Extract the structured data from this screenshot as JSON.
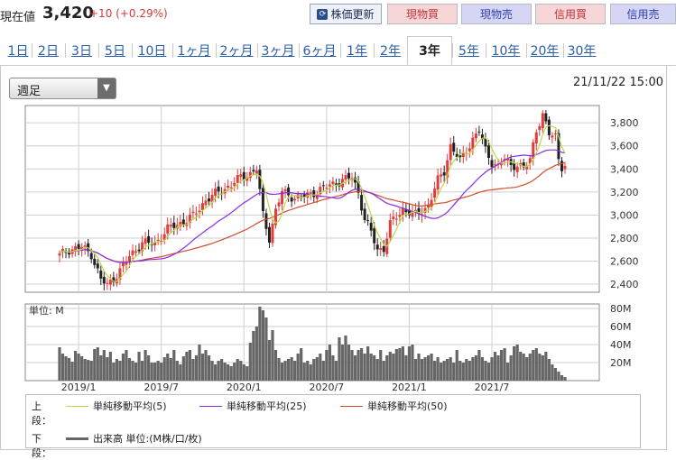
{
  "header": {
    "price_label": "現在値",
    "price_value": "3,420",
    "price_change": "+10 (+0.29%)",
    "update_button": "株価更新",
    "buy_button": "現物買",
    "sell_button": "現物売",
    "margin_buy_button": "信用買",
    "margin_sell_button": "信用売"
  },
  "tabs": [
    "1日",
    "2日",
    "3日",
    "5日",
    "10日",
    "1ヶ月",
    "2ヶ月",
    "3ヶ月",
    "6ヶ月",
    "1年",
    "2年",
    "3年",
    "5年",
    "10年",
    "20年",
    "30年"
  ],
  "active_tab": "3年",
  "period_select": "週足",
  "timestamp": "21/11/22 15:00",
  "colors": {
    "up": "#e23c3c",
    "down": "#222222",
    "ma5": "#b8d84c",
    "ma25": "#8a2be2",
    "ma50": "#d0502a",
    "volume": "#666666"
  },
  "legend": {
    "upper_label": "上段：",
    "lower_label": "下段：",
    "ma5": "単純移動平均(5)",
    "ma25": "単純移動平均(25)",
    "ma50": "単純移動平均(50)",
    "volume": "出来高 単位:(M株/口/枚)"
  },
  "chart_data": {
    "type": "candlestick",
    "price_axis": {
      "ticks": [
        "3,800",
        "3,600",
        "3,400",
        "3,200",
        "3,000",
        "2,800",
        "2,600",
        "2,400"
      ],
      "ylim": [
        2330,
        3950
      ]
    },
    "volume_axis": {
      "unit_label": "単位: M",
      "ticks": [
        "80M",
        "60M",
        "40M",
        "20M"
      ],
      "ylim": [
        0,
        85
      ]
    },
    "x_axis": {
      "ticks": [
        "2019/1",
        "2019/7",
        "2020/1",
        "2020/7",
        "2021/1",
        "2021/7"
      ]
    },
    "price_path": [
      [
        0,
        2650
      ],
      [
        3,
        2700
      ],
      [
        7,
        2720
      ],
      [
        10,
        2660
      ],
      [
        13,
        2440
      ],
      [
        15,
        2390
      ],
      [
        18,
        2480
      ],
      [
        22,
        2640
      ],
      [
        26,
        2760
      ],
      [
        30,
        2750
      ],
      [
        34,
        2880
      ],
      [
        38,
        2930
      ],
      [
        42,
        2990
      ],
      [
        46,
        3130
      ],
      [
        50,
        3200
      ],
      [
        54,
        3260
      ],
      [
        57,
        3330
      ],
      [
        60,
        3360
      ],
      [
        62,
        3400
      ],
      [
        64,
        3000
      ],
      [
        66,
        2800
      ],
      [
        68,
        3040
      ],
      [
        70,
        3200
      ],
      [
        74,
        3150
      ],
      [
        78,
        3170
      ],
      [
        82,
        3220
      ],
      [
        86,
        3270
      ],
      [
        90,
        3310
      ],
      [
        92,
        3330
      ],
      [
        94,
        3200
      ],
      [
        96,
        2960
      ],
      [
        98,
        2850
      ],
      [
        100,
        2700
      ],
      [
        102,
        2710
      ],
      [
        104,
        2920
      ],
      [
        108,
        3050
      ],
      [
        112,
        3000
      ],
      [
        116,
        3080
      ],
      [
        119,
        3300
      ],
      [
        121,
        3380
      ],
      [
        123,
        3600
      ],
      [
        126,
        3470
      ],
      [
        130,
        3660
      ],
      [
        132,
        3730
      ],
      [
        134,
        3560
      ],
      [
        136,
        3460
      ],
      [
        138,
        3420
      ],
      [
        140,
        3490
      ],
      [
        142,
        3430
      ],
      [
        144,
        3440
      ],
      [
        146,
        3400
      ],
      [
        148,
        3480
      ],
      [
        150,
        3750
      ],
      [
        152,
        3860
      ],
      [
        154,
        3700
      ],
      [
        156,
        3690
      ],
      [
        157,
        3500
      ],
      [
        158,
        3420
      ],
      [
        159,
        3420
      ]
    ],
    "volume_weeks": [
      37,
      30,
      27,
      25,
      21,
      33,
      30,
      27,
      24,
      23,
      22,
      35,
      37,
      28,
      34,
      26,
      32,
      20,
      24,
      22,
      30,
      34,
      25,
      22,
      20,
      32,
      22,
      34,
      28,
      20,
      20,
      22,
      20,
      26,
      30,
      25,
      34,
      22,
      18,
      27,
      32,
      34,
      24,
      28,
      40,
      30,
      34,
      28,
      22,
      18,
      22,
      24,
      20,
      18,
      16,
      20,
      24,
      22,
      18,
      16,
      42,
      55,
      60,
      82,
      78,
      70,
      45,
      56,
      34,
      25,
      20,
      22,
      24,
      26,
      22,
      30,
      36,
      20,
      22,
      18,
      24,
      26,
      30,
      22,
      34,
      40,
      28,
      22,
      48,
      40,
      50,
      40,
      34,
      28,
      34,
      36,
      30,
      38,
      30,
      28,
      24,
      34,
      22,
      28,
      32,
      30,
      35,
      36,
      38,
      28,
      38,
      40,
      24,
      30,
      24,
      26,
      28,
      30,
      22,
      26,
      20,
      22,
      24,
      26,
      20,
      34,
      22,
      20,
      24,
      22,
      26,
      28,
      34,
      26,
      22,
      20,
      26,
      32,
      28,
      34,
      36,
      20,
      28,
      38,
      40,
      32,
      30,
      26,
      30,
      34,
      36,
      30,
      28,
      32,
      24,
      18,
      14,
      10,
      6,
      4
    ]
  }
}
